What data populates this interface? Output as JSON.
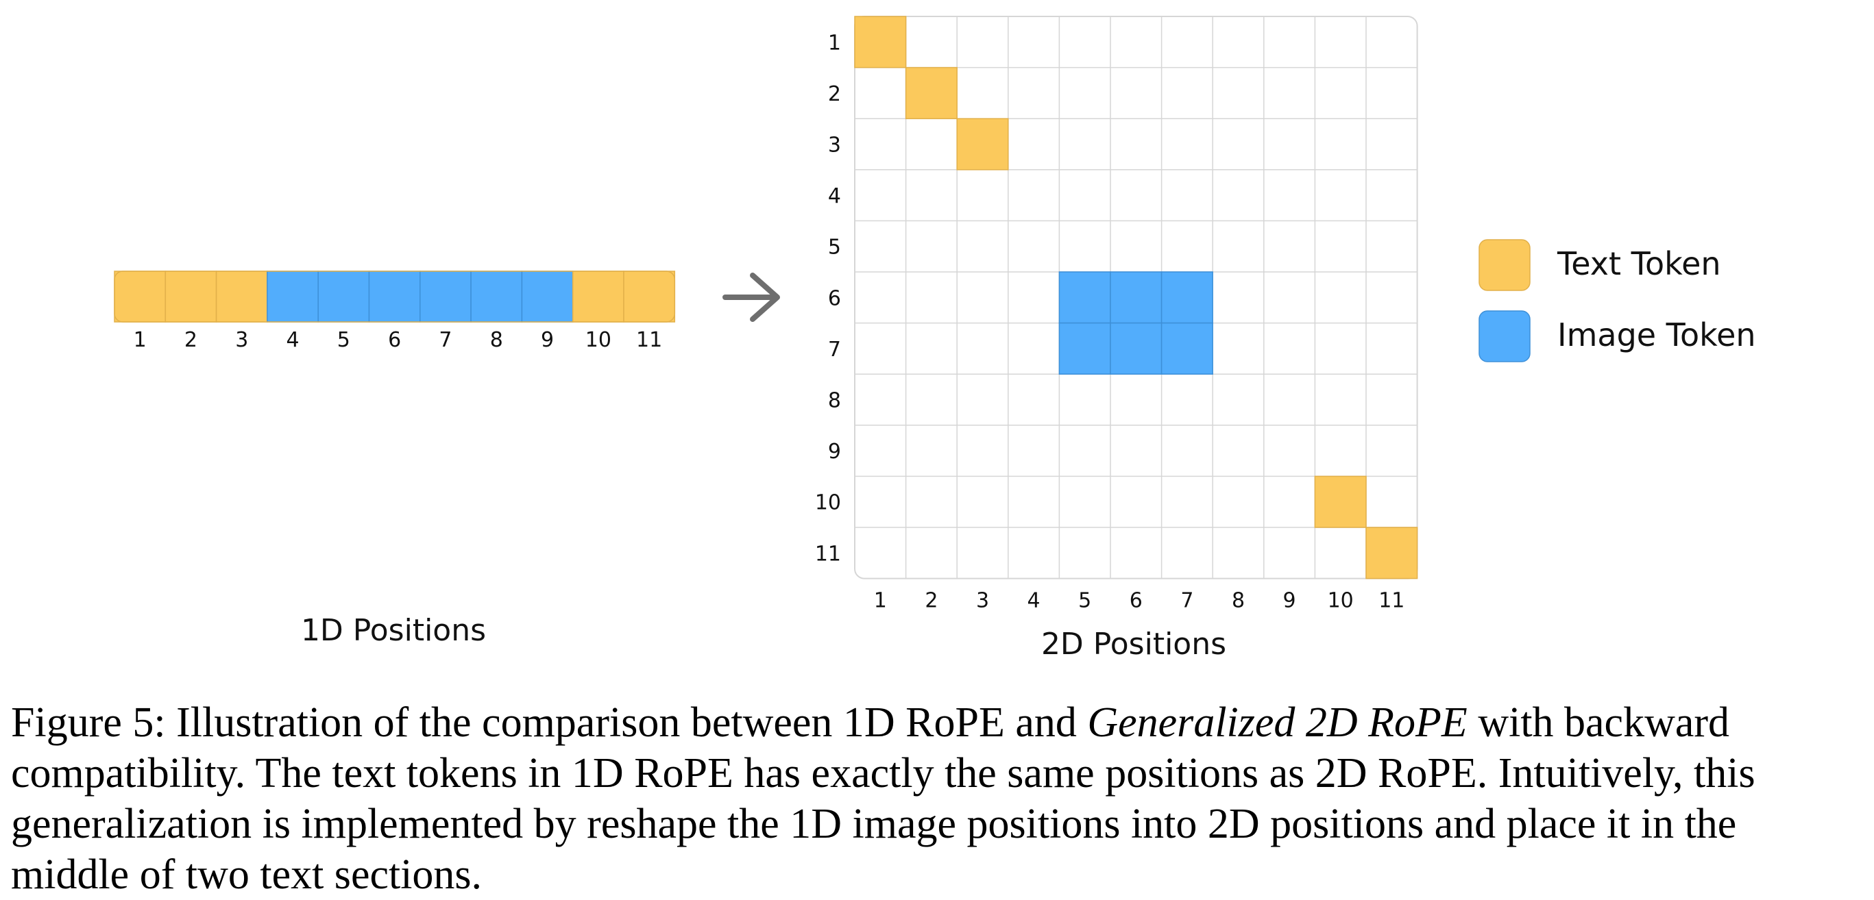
{
  "colors": {
    "text_token": "#FBC95C",
    "text_token_stroke": "#E2B04A",
    "image_token": "#52ADFC",
    "image_token_stroke": "#3E90D8",
    "grid_line": "#D6D6D6",
    "arrow": "#6E6E6E"
  },
  "sequence_1d": {
    "label": "1D Positions",
    "positions": [
      "1",
      "2",
      "3",
      "4",
      "5",
      "6",
      "7",
      "8",
      "9",
      "10",
      "11"
    ],
    "types": [
      "text",
      "text",
      "text",
      "image",
      "image",
      "image",
      "image",
      "image",
      "image",
      "text",
      "text"
    ]
  },
  "arrow_icon": "right-arrow-icon",
  "grid_2d": {
    "label": "2D Positions",
    "rows": [
      "1",
      "2",
      "3",
      "4",
      "5",
      "6",
      "7",
      "8",
      "9",
      "10",
      "11"
    ],
    "cols": [
      "1",
      "2",
      "3",
      "4",
      "5",
      "6",
      "7",
      "8",
      "9",
      "10",
      "11"
    ],
    "text_cells": [
      [
        1,
        1
      ],
      [
        2,
        2
      ],
      [
        3,
        3
      ],
      [
        10,
        10
      ],
      [
        11,
        11
      ]
    ],
    "image_cells": [
      [
        6,
        5
      ],
      [
        6,
        6
      ],
      [
        6,
        7
      ],
      [
        7,
        5
      ],
      [
        7,
        6
      ],
      [
        7,
        7
      ]
    ]
  },
  "legend": {
    "items": [
      {
        "label": "Text Token",
        "type": "text"
      },
      {
        "label": "Image Token",
        "type": "image"
      }
    ]
  },
  "caption": {
    "part1": "Figure 5: Illustration of the comparison between 1D RoPE and ",
    "italic": "Generalized 2D RoPE",
    "part2": " with backward compatibility. The text tokens in 1D RoPE has exactly the same positions as 2D RoPE. Intuitively, this generalization is implemented by reshape the 1D image positions into 2D positions and place it in the middle of two text sections."
  }
}
